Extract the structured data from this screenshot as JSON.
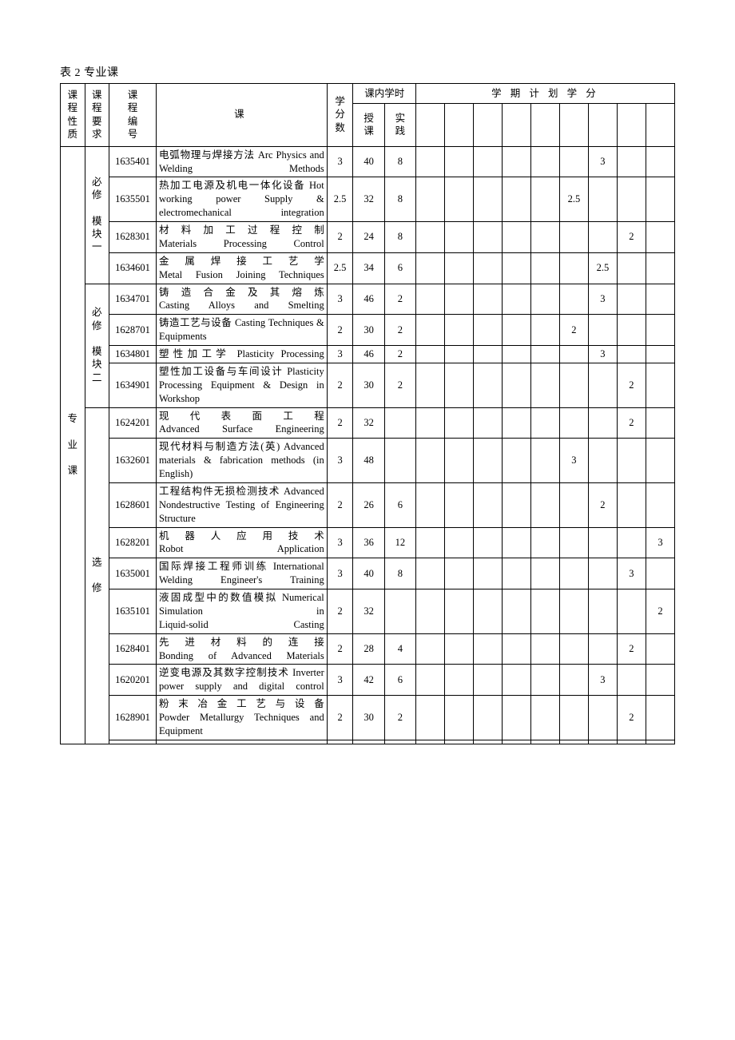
{
  "caption": "表 2  专业课",
  "headers": {
    "nature": "课程性质",
    "req": "课程要求",
    "code": "课程编号",
    "name": "课",
    "credits": "学分数",
    "inclass": "课内学时",
    "lect": "授课",
    "prac": "实践",
    "semplan": "学 期 计 划 学 分"
  },
  "nature_label": "专\n\n业\n\n课",
  "groups": [
    {
      "label": "必修\n\n模块一",
      "start": 0,
      "count": 4
    },
    {
      "label": "必修\n\n模块二",
      "start": 4,
      "count": 4
    },
    {
      "label": "选\n\n修",
      "start": 8,
      "count": 10
    }
  ],
  "rows": [
    {
      "code": "1635401",
      "name": "电弧物理与焊接方法   Arc Physics and Welding Methods",
      "credits": "3",
      "lect": "40",
      "prac": "8",
      "sem": [
        "",
        "",
        "",
        "",
        "",
        "",
        "3",
        "",
        ""
      ]
    },
    {
      "code": "1635501",
      "name": "热加工电源及机电一体化设备 Hot working power Supply & electromechanical integration",
      "credits": "2.5",
      "lect": "32",
      "prac": "8",
      "sem": [
        "",
        "",
        "",
        "",
        "",
        "2.5",
        "",
        "",
        ""
      ]
    },
    {
      "code": "1628301",
      "name": "材料加工过程控制\nMaterials Processing Control",
      "credits": "2",
      "lect": "24",
      "prac": "8",
      "sem": [
        "",
        "",
        "",
        "",
        "",
        "",
        "",
        "2",
        ""
      ]
    },
    {
      "code": "1634601",
      "name": "金属焊接工艺学\nMetal Fusion Joining Techniques",
      "credits": "2.5",
      "lect": "34",
      "prac": "6",
      "sem": [
        "",
        "",
        "",
        "",
        "",
        "",
        "2.5",
        "",
        ""
      ]
    },
    {
      "code": "1634701",
      "name": "铸造合金及其熔炼\nCasting Alloys and Smelting",
      "credits": "3",
      "lect": "46",
      "prac": "2",
      "sem": [
        "",
        "",
        "",
        "",
        "",
        "",
        "3",
        "",
        ""
      ]
    },
    {
      "code": "1628701",
      "name": "铸造工艺与设备   Casting Techniques & Equipments",
      "credits": "2",
      "lect": "30",
      "prac": "2",
      "sem": [
        "",
        "",
        "",
        "",
        "",
        "2",
        "",
        "",
        ""
      ]
    },
    {
      "code": "1634801",
      "name": "塑性加工学 Plasticity Processing",
      "credits": "3",
      "lect": "46",
      "prac": "2",
      "sem": [
        "",
        "",
        "",
        "",
        "",
        "",
        "3",
        "",
        ""
      ]
    },
    {
      "code": "1634901",
      "name": "塑性加工设备与车间设计 Plasticity Processing Equipment & Design in Workshop",
      "credits": "2",
      "lect": "30",
      "prac": "2",
      "sem": [
        "",
        "",
        "",
        "",
        "",
        "",
        "",
        "2",
        ""
      ]
    },
    {
      "code": "1624201",
      "name": "现代表面工程\nAdvanced Surface Engineering",
      "credits": "2",
      "lect": "32",
      "prac": "",
      "sem": [
        "",
        "",
        "",
        "",
        "",
        "",
        "",
        "2",
        ""
      ]
    },
    {
      "code": "1632601",
      "name": "现代材料与制造方法(英) Advanced materials & fabrication methods (in English)",
      "credits": "3",
      "lect": "48",
      "prac": "",
      "sem": [
        "",
        "",
        "",
        "",
        "",
        "3",
        "",
        "",
        ""
      ]
    },
    {
      "code": "1628601",
      "name": "工程结构件无损检测技术 Advanced Nondestructive Testing of Engineering Structure",
      "credits": "2",
      "lect": "26",
      "prac": "6",
      "sem": [
        "",
        "",
        "",
        "",
        "",
        "",
        "2",
        "",
        ""
      ]
    },
    {
      "code": "1628201",
      "name": "机器人应用技术\nRobot Application",
      "credits": "3",
      "lect": "36",
      "prac": "12",
      "sem": [
        "",
        "",
        "",
        "",
        "",
        "",
        "",
        "",
        "3"
      ]
    },
    {
      "code": "1635001",
      "name": "国际焊接工程师训练 International Welding Engineer's Training",
      "credits": "3",
      "lect": "40",
      "prac": "8",
      "sem": [
        "",
        "",
        "",
        "",
        "",
        "",
        "",
        "3",
        ""
      ]
    },
    {
      "code": "1635101",
      "name": "液固成型中的数值模拟 Numerical Simulation in\nLiquid-solid Casting",
      "credits": "2",
      "lect": "32",
      "prac": "",
      "sem": [
        "",
        "",
        "",
        "",
        "",
        "",
        "",
        "",
        "2"
      ]
    },
    {
      "code": "1628401",
      "name": "先进材料的连接\nBonding of Advanced Materials",
      "credits": "2",
      "lect": "28",
      "prac": "4",
      "sem": [
        "",
        "",
        "",
        "",
        "",
        "",
        "",
        "2",
        ""
      ]
    },
    {
      "code": "1620201",
      "name": "逆变电源及其数字控制技术 Inverter power supply and digital control",
      "credits": "3",
      "lect": "42",
      "prac": "6",
      "sem": [
        "",
        "",
        "",
        "",
        "",
        "",
        "3",
        "",
        ""
      ]
    },
    {
      "code": "1628901",
      "name": "粉末冶金工艺与设备\nPowder Metallurgy Techniques and Equipment",
      "credits": "2",
      "lect": "30",
      "prac": "2",
      "sem": [
        "",
        "",
        "",
        "",
        "",
        "",
        "",
        "2",
        ""
      ]
    },
    {
      "code": "",
      "name": "",
      "credits": "",
      "lect": "",
      "prac": "",
      "sem": [
        "",
        "",
        "",
        "",
        "",
        "",
        "",
        "",
        ""
      ]
    }
  ]
}
